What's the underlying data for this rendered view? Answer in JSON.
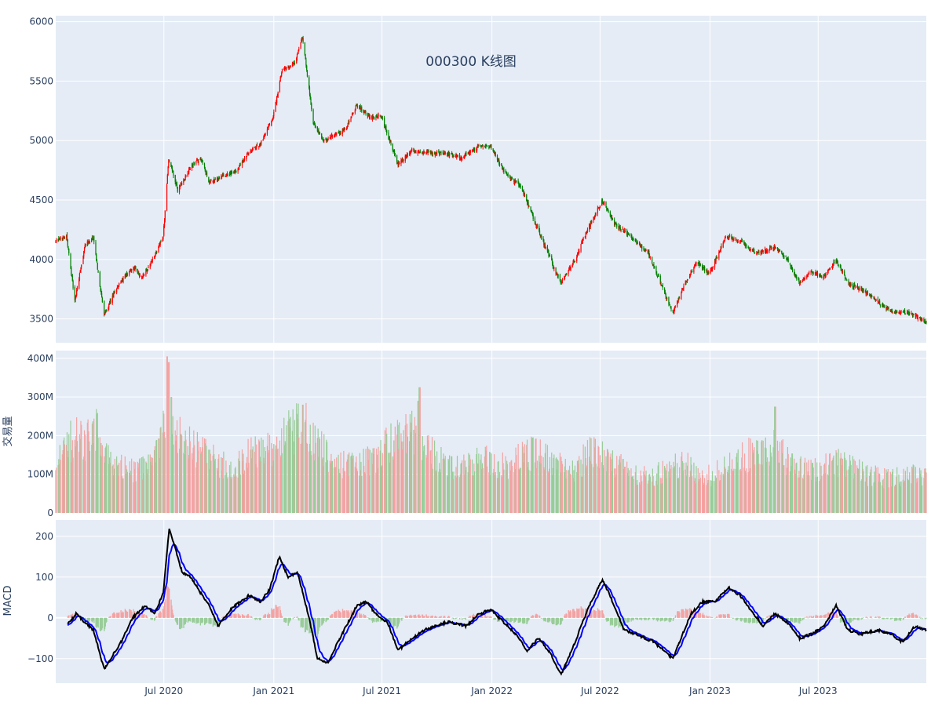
{
  "chart_data": {
    "title": "000300 K线图",
    "type": "candlestick-volume-macd",
    "x_range": [
      "2020-01-02",
      "2023-12-29"
    ],
    "x_ticks": [
      "Jul 2020",
      "Jan 2021",
      "Jul 2021",
      "Jan 2022",
      "Jul 2022",
      "Jan 2023",
      "Jul 2023"
    ],
    "colors": {
      "up": "#ff0000",
      "down": "#008000",
      "up_volume": "#f4a3a3",
      "down_volume": "#99cc99",
      "macd_line": "#000000",
      "signal_line": "#0000ff",
      "plot_bg": "#e5ecf6",
      "grid": "#ffffff"
    },
    "panels": [
      {
        "id": "price",
        "ylabel": "",
        "ylim": [
          3300,
          6050
        ],
        "y_ticks": [
          3500,
          4000,
          4500,
          5000,
          5500,
          6000
        ],
        "y_tick_labels": [
          "3500",
          "4000",
          "4500",
          "5000",
          "5500",
          "6000"
        ]
      },
      {
        "id": "volume",
        "ylabel": "交易量",
        "ylim": [
          0,
          420
        ],
        "unit": "M",
        "y_ticks": [
          0,
          100,
          200,
          300,
          400
        ],
        "y_tick_labels": [
          "0",
          "100M",
          "200M",
          "300M",
          "400M"
        ]
      },
      {
        "id": "macd",
        "ylabel": "MACD",
        "ylim": [
          -160,
          240
        ],
        "y_ticks": [
          -100,
          0,
          100,
          200
        ],
        "y_tick_labels": [
          "−100",
          "0",
          "100",
          "200"
        ]
      }
    ],
    "close_path": [
      [
        "2020-01-02",
        4150
      ],
      [
        "2020-01-20",
        4200
      ],
      [
        "2020-02-03",
        3650
      ],
      [
        "2020-02-20",
        4120
      ],
      [
        "2020-03-05",
        4180
      ],
      [
        "2020-03-23",
        3530
      ],
      [
        "2020-04-15",
        3780
      ],
      [
        "2020-05-10",
        3930
      ],
      [
        "2020-05-25",
        3850
      ],
      [
        "2020-06-15",
        4020
      ],
      [
        "2020-06-30",
        4200
      ],
      [
        "2020-07-09",
        4850
      ],
      [
        "2020-07-24",
        4580
      ],
      [
        "2020-08-15",
        4780
      ],
      [
        "2020-09-01",
        4850
      ],
      [
        "2020-09-15",
        4650
      ],
      [
        "2020-10-10",
        4700
      ],
      [
        "2020-11-01",
        4750
      ],
      [
        "2020-11-20",
        4900
      ],
      [
        "2020-12-10",
        4980
      ],
      [
        "2020-12-31",
        5200
      ],
      [
        "2021-01-15",
        5600
      ],
      [
        "2021-02-05",
        5650
      ],
      [
        "2021-02-18",
        5870
      ],
      [
        "2021-03-08",
        5150
      ],
      [
        "2021-03-25",
        5000
      ],
      [
        "2021-04-15",
        5050
      ],
      [
        "2021-05-01",
        5100
      ],
      [
        "2021-05-20",
        5300
      ],
      [
        "2021-06-10",
        5200
      ],
      [
        "2021-06-30",
        5200
      ],
      [
        "2021-07-28",
        4800
      ],
      [
        "2021-08-20",
        4920
      ],
      [
        "2021-09-10",
        4900
      ],
      [
        "2021-10-10",
        4900
      ],
      [
        "2021-11-10",
        4850
      ],
      [
        "2021-12-10",
        4950
      ],
      [
        "2021-12-31",
        4950
      ],
      [
        "2022-01-20",
        4750
      ],
      [
        "2022-02-20",
        4600
      ],
      [
        "2022-03-15",
        4300
      ],
      [
        "2022-04-26",
        3800
      ],
      [
        "2022-05-20",
        4000
      ],
      [
        "2022-06-10",
        4250
      ],
      [
        "2022-07-05",
        4500
      ],
      [
        "2022-07-25",
        4300
      ],
      [
        "2022-08-20",
        4200
      ],
      [
        "2022-09-20",
        4050
      ],
      [
        "2022-10-31",
        3550
      ],
      [
        "2022-11-20",
        3800
      ],
      [
        "2022-12-10",
        3980
      ],
      [
        "2022-12-31",
        3880
      ],
      [
        "2023-01-28",
        4200
      ],
      [
        "2023-02-20",
        4150
      ],
      [
        "2023-03-20",
        4050
      ],
      [
        "2023-04-20",
        4100
      ],
      [
        "2023-05-10",
        4000
      ],
      [
        "2023-05-31",
        3800
      ],
      [
        "2023-06-20",
        3900
      ],
      [
        "2023-07-10",
        3850
      ],
      [
        "2023-07-31",
        4000
      ],
      [
        "2023-08-20",
        3800
      ],
      [
        "2023-09-10",
        3750
      ],
      [
        "2023-10-20",
        3600
      ],
      [
        "2023-11-10",
        3550
      ],
      [
        "2023-11-30",
        3550
      ],
      [
        "2023-12-20",
        3500
      ],
      [
        "2023-12-29",
        3480
      ]
    ],
    "volume_path": [
      [
        "2020-01-02",
        140
      ],
      [
        "2020-02-05",
        200
      ],
      [
        "2020-02-20",
        180
      ],
      [
        "2020-03-10",
        210
      ],
      [
        "2020-04-10",
        120
      ],
      [
        "2020-05-10",
        110
      ],
      [
        "2020-06-15",
        130
      ],
      [
        "2020-07-08",
        300
      ],
      [
        "2020-07-25",
        200
      ],
      [
        "2020-08-20",
        170
      ],
      [
        "2020-09-30",
        130
      ],
      [
        "2020-10-20",
        115
      ],
      [
        "2020-11-20",
        150
      ],
      [
        "2020-12-20",
        160
      ],
      [
        "2021-01-20",
        200
      ],
      [
        "2021-02-20",
        230
      ],
      [
        "2021-03-10",
        190
      ],
      [
        "2021-04-10",
        130
      ],
      [
        "2021-05-10",
        120
      ],
      [
        "2021-06-15",
        140
      ],
      [
        "2021-07-28",
        200
      ],
      [
        "2021-08-20",
        220
      ],
      [
        "2021-09-20",
        160
      ],
      [
        "2021-10-20",
        120
      ],
      [
        "2021-11-20",
        130
      ],
      [
        "2021-12-20",
        140
      ],
      [
        "2022-01-20",
        120
      ],
      [
        "2022-03-15",
        160
      ],
      [
        "2022-04-20",
        130
      ],
      [
        "2022-05-20",
        110
      ],
      [
        "2022-06-15",
        160
      ],
      [
        "2022-07-20",
        130
      ],
      [
        "2022-08-20",
        110
      ],
      [
        "2022-09-20",
        90
      ],
      [
        "2022-10-20",
        110
      ],
      [
        "2022-11-20",
        130
      ],
      [
        "2022-12-20",
        90
      ],
      [
        "2023-01-20",
        110
      ],
      [
        "2023-02-20",
        140
      ],
      [
        "2023-03-20",
        160
      ],
      [
        "2023-04-20",
        170
      ],
      [
        "2023-05-20",
        120
      ],
      [
        "2023-06-20",
        110
      ],
      [
        "2023-07-31",
        130
      ],
      [
        "2023-08-20",
        120
      ],
      [
        "2023-09-20",
        100
      ],
      [
        "2023-10-20",
        90
      ],
      [
        "2023-11-20",
        100
      ],
      [
        "2023-12-29",
        95
      ]
    ],
    "volume_spikes": [
      [
        "2020-07-07",
        405
      ],
      [
        "2020-07-09",
        390
      ],
      [
        "2020-07-13",
        300
      ],
      [
        "2021-02-19",
        280
      ],
      [
        "2021-09-02",
        325
      ],
      [
        "2021-08-30",
        290
      ],
      [
        "2023-04-20",
        275
      ]
    ],
    "macd_path": [
      [
        "2020-01-20",
        -20
      ],
      [
        "2020-02-05",
        10
      ],
      [
        "2020-03-05",
        -30
      ],
      [
        "2020-03-23",
        -125
      ],
      [
        "2020-04-20",
        -60
      ],
      [
        "2020-05-10",
        0
      ],
      [
        "2020-05-31",
        30
      ],
      [
        "2020-06-15",
        10
      ],
      [
        "2020-06-30",
        60
      ],
      [
        "2020-07-10",
        220
      ],
      [
        "2020-08-01",
        110
      ],
      [
        "2020-08-15",
        100
      ],
      [
        "2020-09-01",
        60
      ],
      [
        "2020-09-15",
        30
      ],
      [
        "2020-09-30",
        -20
      ],
      [
        "2020-10-20",
        20
      ],
      [
        "2020-11-20",
        55
      ],
      [
        "2020-12-10",
        40
      ],
      [
        "2020-12-25",
        70
      ],
      [
        "2021-01-10",
        150
      ],
      [
        "2021-01-25",
        100
      ],
      [
        "2021-02-10",
        110
      ],
      [
        "2021-03-01",
        0
      ],
      [
        "2021-03-15",
        -100
      ],
      [
        "2021-04-01",
        -110
      ],
      [
        "2021-04-25",
        -40
      ],
      [
        "2021-05-20",
        30
      ],
      [
        "2021-06-05",
        40
      ],
      [
        "2021-06-20",
        10
      ],
      [
        "2021-07-10",
        -10
      ],
      [
        "2021-07-28",
        -80
      ],
      [
        "2021-08-20",
        -50
      ],
      [
        "2021-09-10",
        -30
      ],
      [
        "2021-09-30",
        -20
      ],
      [
        "2021-10-20",
        -10
      ],
      [
        "2021-11-20",
        -20
      ],
      [
        "2021-12-10",
        10
      ],
      [
        "2021-12-31",
        20
      ],
      [
        "2022-01-20",
        -10
      ],
      [
        "2022-02-10",
        -40
      ],
      [
        "2022-03-01",
        -80
      ],
      [
        "2022-03-20",
        -50
      ],
      [
        "2022-04-10",
        -90
      ],
      [
        "2022-04-27",
        -140
      ],
      [
        "2022-05-20",
        -60
      ],
      [
        "2022-06-10",
        20
      ],
      [
        "2022-07-05",
        95
      ],
      [
        "2022-07-25",
        30
      ],
      [
        "2022-08-10",
        -30
      ],
      [
        "2022-08-30",
        -40
      ],
      [
        "2022-09-30",
        -60
      ],
      [
        "2022-10-31",
        -100
      ],
      [
        "2022-11-30",
        10
      ],
      [
        "2022-12-20",
        40
      ],
      [
        "2023-01-10",
        40
      ],
      [
        "2023-02-01",
        75
      ],
      [
        "2023-02-20",
        55
      ],
      [
        "2023-03-10",
        20
      ],
      [
        "2023-03-31",
        -20
      ],
      [
        "2023-04-20",
        10
      ],
      [
        "2023-05-10",
        -10
      ],
      [
        "2023-05-31",
        -50
      ],
      [
        "2023-06-20",
        -40
      ],
      [
        "2023-07-10",
        -20
      ],
      [
        "2023-07-31",
        30
      ],
      [
        "2023-08-20",
        -30
      ],
      [
        "2023-09-10",
        -40
      ],
      [
        "2023-10-10",
        -30
      ],
      [
        "2023-10-31",
        -40
      ],
      [
        "2023-11-20",
        -60
      ],
      [
        "2023-12-10",
        -20
      ],
      [
        "2023-12-29",
        -30
      ]
    ]
  }
}
